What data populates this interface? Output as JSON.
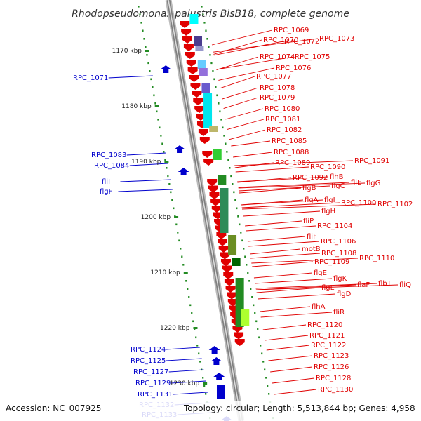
{
  "title": "Rhodopseudomonas palustris BisB18, complete genome",
  "accession": "Accession: NC_007925",
  "topology": "Topology: circular; Length: 5,513,844 bp; Genes: 4,958",
  "colors": {
    "forward": "#e00000",
    "reverse": "#0000cc",
    "tick": "#228b22",
    "backbone": "#999999"
  },
  "ticks": [
    {
      "label": "1170 kbp",
      "value": 1170
    },
    {
      "label": "1180 kbp",
      "value": 1180
    },
    {
      "label": "1190 kbp",
      "value": 1190
    },
    {
      "label": "1200 kbp",
      "value": 1200
    },
    {
      "label": "1210 kbp",
      "value": 1210
    },
    {
      "label": "1220 kbp",
      "value": 1220
    },
    {
      "label": "1230 kbp",
      "value": 1230
    }
  ],
  "forward_labels": [
    "RPC_1069",
    "RPC_1070",
    "RPC_1072",
    "RPC_1073",
    "RPC_1074",
    "RPC_1075",
    "RPC_1076",
    "RPC_1077",
    "RPC_1078",
    "RPC_1079",
    "RPC_1080",
    "RPC_1081",
    "RPC_1082",
    "RPC_1085",
    "RPC_1088",
    "RPC_1089",
    "RPC_1090",
    "RPC_1091",
    "RPC_1092",
    "flhB",
    "flgB",
    "flgC",
    "fliE",
    "flgG",
    "flgA",
    "flgI",
    "RPC_1100",
    "RPC_1102",
    "flgH",
    "fliP",
    "RPC_1104",
    "fliF",
    "RPC_1106",
    "motB",
    "RPC_1108",
    "RPC_1109",
    "RPC_1110",
    "flgE",
    "flgK",
    "flgL",
    "flaF",
    "flbT",
    "fliQ",
    "flgD",
    "flhA",
    "fliR",
    "RPC_1120",
    "RPC_1121",
    "RPC_1122",
    "RPC_1123",
    "RPC_1126",
    "RPC_1128",
    "RPC_1130"
  ],
  "reverse_labels": [
    "RPC_1071",
    "RPC_1083",
    "RPC_1084",
    "fliI",
    "flgF",
    "RPC_1124",
    "RPC_1125",
    "RPC_1127",
    "RPC_1129",
    "RPC_1131",
    "RPC_1132",
    "RPC_1133"
  ]
}
